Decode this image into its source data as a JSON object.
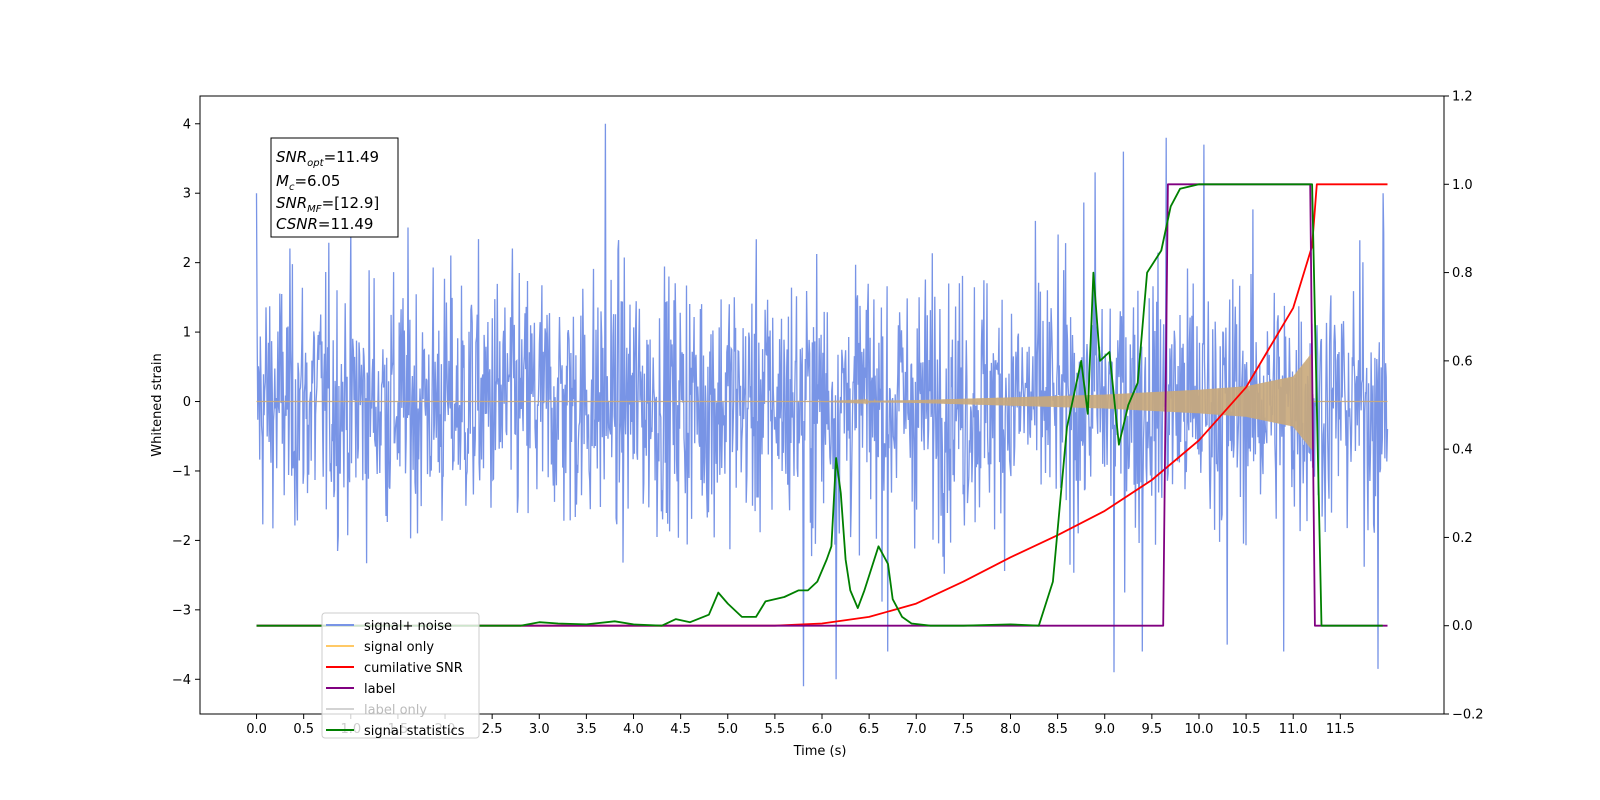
{
  "chart_data": {
    "type": "line",
    "xlabel": "Time (s)",
    "ylabel": "Whitened strain",
    "xlim": [
      -0.6,
      12.6
    ],
    "ylim": [
      -4.5,
      4.4
    ],
    "y2lim": [
      -0.2,
      1.2
    ],
    "x_ticks": [
      "0.0",
      "0.5",
      "1.0",
      "1.5",
      "2.0",
      "2.5",
      "3.0",
      "3.5",
      "4.0",
      "4.5",
      "5.0",
      "5.5",
      "6.0",
      "6.5",
      "7.0",
      "7.5",
      "8.0",
      "8.5",
      "9.0",
      "9.5",
      "10.0",
      "10.5",
      "11.0",
      "11.5"
    ],
    "y_ticks": [
      "4",
      "3",
      "2",
      "1",
      "0",
      "−1",
      "−2",
      "−3",
      "−4"
    ],
    "y2_ticks": [
      "1.2",
      "1.0",
      "0.8",
      "0.6",
      "0.4",
      "0.2",
      "0.0",
      "−0.2"
    ],
    "annotation": {
      "lines": [
        {
          "base": "SNR",
          "sub": "opt",
          "value": "=11.49"
        },
        {
          "base": "M",
          "sub": "c",
          "value": "=6.05"
        },
        {
          "base": "SNR",
          "sub": "MF",
          "value": "=[12.9]"
        },
        {
          "base": "CSNR",
          "sub": "",
          "value": "=11.49"
        }
      ]
    },
    "legend": {
      "placement": "lower-left",
      "entries": [
        {
          "label": "signal+ noise",
          "color": "#7894e6"
        },
        {
          "label": "signal only",
          "color": "#ffc966"
        },
        {
          "label": "cumilative SNR",
          "color": "#ff0000"
        },
        {
          "label": "label",
          "color": "#800080"
        },
        {
          "label": "label only",
          "color": "#d3d3d3"
        },
        {
          "label": "signal statistics",
          "color": "#008000"
        }
      ]
    },
    "series": [
      {
        "name": "signal+ noise",
        "axis": "left",
        "color": "#7894e6",
        "x_range": [
          0.0,
          12.0
        ],
        "typical_envelope": [
          -2.0,
          2.0
        ],
        "peak_spikes": [
          {
            "x": 0.0,
            "y": 3.0
          },
          {
            "x": 3.7,
            "y": 4.0
          },
          {
            "x": 5.8,
            "y": -4.1
          },
          {
            "x": 6.15,
            "y": -4.0
          },
          {
            "x": 6.7,
            "y": -3.6
          },
          {
            "x": 8.9,
            "y": 3.3
          },
          {
            "x": 9.1,
            "y": -3.9
          },
          {
            "x": 9.2,
            "y": 3.6
          },
          {
            "x": 9.4,
            "y": -3.6
          },
          {
            "x": 9.65,
            "y": 3.8
          },
          {
            "x": 10.05,
            "y": 3.7
          },
          {
            "x": 10.3,
            "y": -3.5
          },
          {
            "x": 10.9,
            "y": -3.6
          },
          {
            "x": 11.9,
            "y": -3.85
          },
          {
            "x": 11.95,
            "y": 3.0
          }
        ]
      },
      {
        "name": "signal only",
        "axis": "left",
        "color": "#c9a97a",
        "x": [
          0.0,
          6.0,
          7.0,
          8.0,
          9.0,
          10.0,
          10.5,
          11.0,
          11.2,
          11.21,
          12.0
        ],
        "envelope": [
          0.0,
          0.0,
          0.02,
          0.06,
          0.1,
          0.17,
          0.22,
          0.36,
          0.7,
          0.0,
          0.0
        ]
      },
      {
        "name": "cumilative SNR",
        "axis": "right",
        "color": "#ff0000",
        "x": [
          0.0,
          5.5,
          6.0,
          6.5,
          7.0,
          7.5,
          8.0,
          8.5,
          9.0,
          9.5,
          10.0,
          10.5,
          11.0,
          11.2,
          11.25,
          12.0
        ],
        "y": [
          0.0,
          0.0,
          0.005,
          0.02,
          0.05,
          0.1,
          0.155,
          0.205,
          0.26,
          0.33,
          0.42,
          0.54,
          0.72,
          0.86,
          1.0,
          1.0
        ]
      },
      {
        "name": "label",
        "axis": "right",
        "color": "#800080",
        "x": [
          0.0,
          9.62,
          9.67,
          11.18,
          11.23,
          12.0
        ],
        "y": [
          0.0,
          0.0,
          1.0,
          1.0,
          0.0,
          0.0
        ]
      },
      {
        "name": "signal statistics",
        "axis": "right",
        "color": "#008000",
        "x": [
          0.0,
          2.8,
          3.0,
          3.2,
          3.5,
          3.8,
          4.0,
          4.3,
          4.45,
          4.6,
          4.8,
          4.9,
          5.0,
          5.15,
          5.3,
          5.4,
          5.6,
          5.75,
          5.85,
          5.95,
          6.05,
          6.1,
          6.15,
          6.2,
          6.25,
          6.3,
          6.38,
          6.45,
          6.6,
          6.7,
          6.75,
          6.85,
          6.95,
          7.15,
          7.5,
          8.0,
          8.3,
          8.45,
          8.6,
          8.75,
          8.82,
          8.88,
          8.95,
          9.05,
          9.15,
          9.25,
          9.35,
          9.45,
          9.6,
          9.7,
          9.8,
          10.0,
          11.0,
          11.1,
          11.2,
          11.3,
          11.95
        ],
        "y": [
          0.0,
          0.0,
          0.008,
          0.005,
          0.003,
          0.01,
          0.003,
          0.0,
          0.015,
          0.008,
          0.025,
          0.075,
          0.05,
          0.02,
          0.02,
          0.055,
          0.065,
          0.08,
          0.08,
          0.1,
          0.15,
          0.18,
          0.38,
          0.3,
          0.15,
          0.08,
          0.04,
          0.08,
          0.18,
          0.14,
          0.06,
          0.02,
          0.005,
          0.0,
          0.0,
          0.003,
          0.0,
          0.1,
          0.45,
          0.6,
          0.48,
          0.8,
          0.6,
          0.62,
          0.41,
          0.5,
          0.55,
          0.8,
          0.85,
          0.95,
          0.99,
          1.0,
          1.0,
          1.0,
          1.0,
          0.0,
          0.0
        ]
      }
    ]
  }
}
